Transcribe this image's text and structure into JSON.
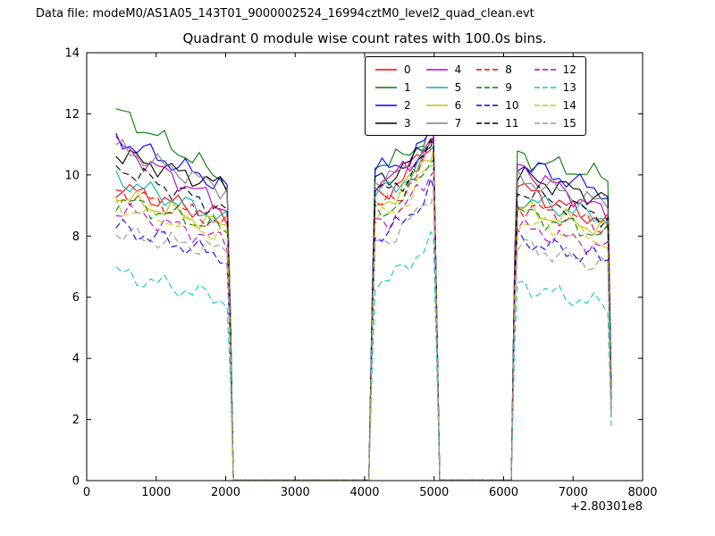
{
  "chart_data": {
    "type": "line",
    "header": "Data file: modeM0/AS1A05_143T01_9000002524_16994cztM0_level2_quad_clean.evt",
    "title": "Quadrant 0 module wise count rates with 100.0s bins.",
    "xlabel": "",
    "ylabel": "",
    "xlim": [
      0,
      8000
    ],
    "ylim": [
      0,
      14
    ],
    "xticks": [
      0,
      1000,
      2000,
      3000,
      4000,
      5000,
      6000,
      7000,
      8000
    ],
    "yticks": [
      0,
      2,
      4,
      6,
      8,
      10,
      12,
      14
    ],
    "x_offset_label": "+2.80301e8",
    "grid": false,
    "legend_position": "upper center",
    "legend_columns": 4,
    "segments_note": "Three observation windows: ~420-2050, ~4100-5050, ~6150-7550; zero counts between windows",
    "series": [
      {
        "name": "0",
        "color": "#ff0000",
        "dashed": false,
        "segA": [
          9.6,
          8.6
        ],
        "segB": [
          9.3,
          11.2
        ],
        "segC": [
          9.6,
          8.4
        ],
        "final": 2.6
      },
      {
        "name": "1",
        "color": "#008000",
        "dashed": false,
        "segA": [
          12.1,
          9.8
        ],
        "segB": [
          10.4,
          11.5
        ],
        "segC": [
          10.6,
          9.9
        ],
        "final": 3.0
      },
      {
        "name": "2",
        "color": "#0000ff",
        "dashed": false,
        "segA": [
          11.2,
          9.6
        ],
        "segB": [
          10.2,
          11.3
        ],
        "segC": [
          10.4,
          9.4
        ],
        "final": 2.8
      },
      {
        "name": "3",
        "color": "#000000",
        "dashed": false,
        "segA": [
          10.7,
          9.6
        ],
        "segB": [
          9.9,
          11.2
        ],
        "segC": [
          10.0,
          9.2
        ],
        "final": 2.7
      },
      {
        "name": "4",
        "color": "#bf00bf",
        "dashed": false,
        "segA": [
          11.0,
          8.9
        ],
        "segB": [
          9.8,
          11.2
        ],
        "segC": [
          10.3,
          8.7
        ],
        "final": 2.5
      },
      {
        "name": "5",
        "color": "#00b2b2",
        "dashed": false,
        "segA": [
          9.9,
          8.5
        ],
        "segB": [
          9.4,
          10.9
        ],
        "segC": [
          9.2,
          8.6
        ],
        "final": 2.4
      },
      {
        "name": "6",
        "color": "#bfbf00",
        "dashed": false,
        "segA": [
          9.3,
          8.3
        ],
        "segB": [
          9.0,
          10.8
        ],
        "segC": [
          8.9,
          8.2
        ],
        "final": 2.4
      },
      {
        "name": "7",
        "color": "#7f7f7f",
        "dashed": false,
        "segA": [
          10.9,
          9.5
        ],
        "segB": [
          9.9,
          11.0
        ],
        "segC": [
          9.9,
          9.0
        ],
        "final": 2.6
      },
      {
        "name": "8",
        "color": "#ff0000",
        "dashed": true,
        "segA": [
          9.5,
          8.4
        ],
        "segB": [
          8.9,
          10.7
        ],
        "segC": [
          9.0,
          8.3
        ],
        "final": 2.4
      },
      {
        "name": "9",
        "color": "#008000",
        "dashed": true,
        "segA": [
          9.2,
          8.2
        ],
        "segB": [
          8.7,
          10.5
        ],
        "segC": [
          8.8,
          8.0
        ],
        "final": 2.3
      },
      {
        "name": "10",
        "color": "#0000ff",
        "dashed": true,
        "segA": [
          8.3,
          7.3
        ],
        "segB": [
          8.0,
          9.6
        ],
        "segC": [
          7.9,
          7.2
        ],
        "final": 2.1
      },
      {
        "name": "11",
        "color": "#000000",
        "dashed": true,
        "segA": [
          10.3,
          8.8
        ],
        "segB": [
          9.4,
          10.9
        ],
        "segC": [
          9.5,
          8.6
        ],
        "final": 2.5
      },
      {
        "name": "12",
        "color": "#bf00bf",
        "dashed": true,
        "segA": [
          8.9,
          7.8
        ],
        "segB": [
          8.4,
          10.1
        ],
        "segC": [
          8.3,
          7.6
        ],
        "final": 2.2
      },
      {
        "name": "13",
        "color": "#00cccc",
        "dashed": true,
        "segA": [
          6.8,
          5.9
        ],
        "segB": [
          6.5,
          8.0
        ],
        "segC": [
          6.4,
          5.7
        ],
        "final": 1.8
      },
      {
        "name": "14",
        "color": "#cccc00",
        "dashed": true,
        "segA": [
          9.0,
          8.0
        ],
        "segB": [
          8.5,
          10.3
        ],
        "segC": [
          8.5,
          7.8
        ],
        "final": 2.3
      },
      {
        "name": "15",
        "color": "#999999",
        "dashed": true,
        "segA": [
          8.1,
          7.5
        ],
        "segB": [
          7.8,
          9.4
        ],
        "segC": [
          7.7,
          7.0
        ],
        "final": 2.0
      }
    ]
  }
}
